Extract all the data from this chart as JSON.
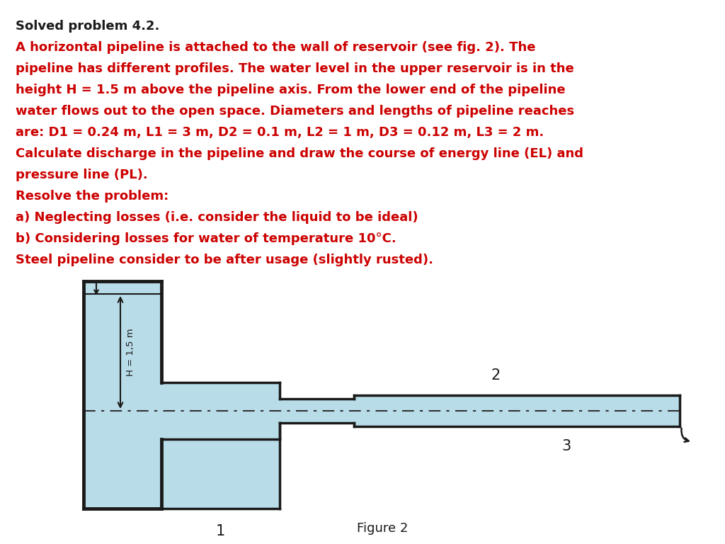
{
  "title_black": "Solved problem 4.2.",
  "red_line1": "A horizontal pipeline is attached to the wall of reservoir (see fig. 2). The",
  "red_line2": "pipeline has different profiles. The water level in the upper reservoir is in the",
  "red_line3": "height H = 1.5 m above the pipeline axis. From the lower end of the pipeline",
  "red_line4": "water flows out to the open space. Diameters and lengths of pipeline reaches",
  "red_line5": "are: D1 = 0.24 m, L1 = 3 m, D2 = 0.1 m, L2 = 1 m, D3 = 0.12 m, L3 = 2 m.",
  "red_line6": "Calculate discharge in the pipeline and draw the course of energy line (EL) and",
  "red_line7": "pressure line (PL).",
  "red_line8": "Resolve the problem:",
  "red_line9": "a) Neglecting losses (i.e. consider the liquid to be ideal)",
  "red_line10": "b) Considering losses for water of temperature 10°C.",
  "red_line11": "Steel pipeline consider to be after usage (slightly rusted).",
  "figure_caption": "Figure 2",
  "water_color": "#b8dce8",
  "outline_color": "#1a1a1a",
  "text_color_black": "#1a1a1a",
  "text_color_red": "#cc0000",
  "background_color": "#ffffff",
  "title_fontsize": 13,
  "body_fontsize": 13
}
